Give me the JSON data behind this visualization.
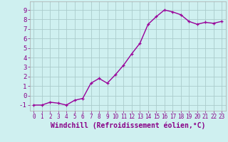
{
  "x": [
    0,
    1,
    2,
    3,
    4,
    5,
    6,
    7,
    8,
    9,
    10,
    11,
    12,
    13,
    14,
    15,
    16,
    17,
    18,
    19,
    20,
    21,
    22,
    23
  ],
  "y": [
    -1.0,
    -1.0,
    -0.7,
    -0.8,
    -1.0,
    -0.5,
    -0.3,
    1.3,
    1.8,
    1.3,
    2.2,
    3.2,
    4.4,
    5.5,
    7.5,
    8.3,
    9.0,
    8.8,
    8.5,
    7.8,
    7.5,
    7.7,
    7.6,
    7.8
  ],
  "line_color": "#990099",
  "marker": "+",
  "markersize": 3,
  "linewidth": 1.0,
  "bg_color": "#cff0f0",
  "grid_color": "#aacccc",
  "xlabel": "Windchill (Refroidissement éolien,°C)",
  "xlabel_fontsize": 7,
  "ylabel_ticks": [
    -1,
    0,
    1,
    2,
    3,
    4,
    5,
    6,
    7,
    8,
    9
  ],
  "xlim": [
    -0.5,
    23.5
  ],
  "ylim": [
    -1.6,
    9.9
  ],
  "xtick_fontsize": 5.5,
  "ytick_fontsize": 6.5,
  "tick_color": "#880088"
}
